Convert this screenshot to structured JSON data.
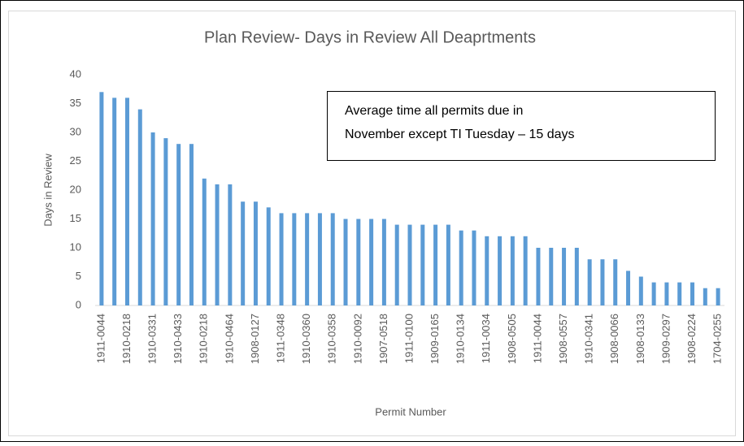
{
  "chart_data": {
    "type": "bar",
    "title": "Plan Review- Days in Review All Deaprtments",
    "y_label": "Days in Review",
    "x_label": "Permit Number",
    "annotation": [
      "Average time all permits due in",
      "November except TI Tuesday – 15 days"
    ],
    "color": "#5b9bd5",
    "grid": false,
    "ylim": [
      0,
      40
    ],
    "yticks": [
      0,
      5,
      10,
      15,
      20,
      25,
      30,
      35,
      40
    ],
    "categories": [
      "1911-0044",
      null,
      "1910-0218",
      null,
      "1910-0331",
      null,
      "1910-0433",
      null,
      "1910-0218",
      null,
      "1910-0464",
      null,
      "1908-0127",
      null,
      "1911-0348",
      null,
      "1910-0360",
      null,
      "1910-0358",
      null,
      "1910-0092",
      null,
      "1907-0518",
      null,
      "1911-0100",
      null,
      "1909-0165",
      null,
      "1910-0134",
      null,
      "1911-0034",
      null,
      "1908-0505",
      null,
      "1911-0044",
      null,
      "1908-0557",
      null,
      "1910-0341",
      null,
      "1908-0066",
      null,
      "1908-0133",
      null,
      "1909-0297",
      null,
      "1908-0224",
      null,
      "1704-0255"
    ],
    "values": [
      37,
      36,
      36,
      34,
      30,
      29,
      28,
      28,
      22,
      21,
      21,
      18,
      18,
      17,
      16,
      16,
      16,
      16,
      16,
      15,
      15,
      15,
      15,
      14,
      14,
      14,
      14,
      14,
      13,
      13,
      12,
      12,
      12,
      12,
      10,
      10,
      10,
      10,
      8,
      8,
      8,
      6,
      5,
      4,
      4,
      4,
      4,
      3,
      3
    ]
  }
}
